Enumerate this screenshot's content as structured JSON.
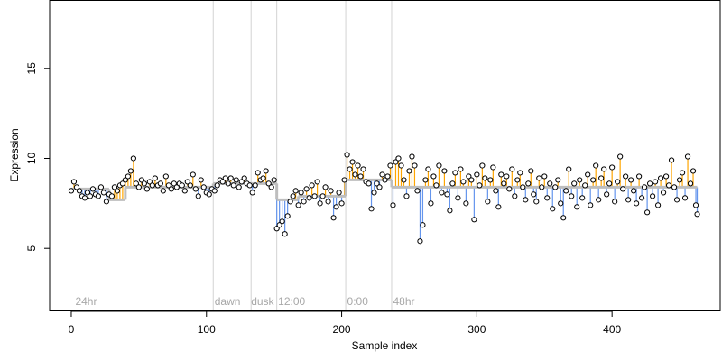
{
  "chart_data": {
    "type": "scatter",
    "title": "",
    "xlabel": "Sample index",
    "ylabel": "Expression",
    "xlim": [
      -16,
      480
    ],
    "ylim": [
      1.5,
      18.8
    ],
    "x_ticks": [
      0,
      100,
      200,
      300,
      400
    ],
    "y_ticks": [
      5,
      10,
      15
    ],
    "grid": false,
    "colors": {
      "above_fit": "#ffa500",
      "below_fit": "#6495ed",
      "fit_line": "#bebebe",
      "divider": "#d3d3d3",
      "point_fill": "#ffffff",
      "point_stroke": "#000000",
      "phase_label": "#a8a8a8"
    },
    "phase_markers": [
      {
        "label": "24hr",
        "x": 0,
        "label_x": 3
      },
      {
        "label": "dawn",
        "x": 105,
        "label_x": 106
      },
      {
        "label": "dusk",
        "x": 133,
        "label_x": 133
      },
      {
        "label": "12:00",
        "x": 152,
        "label_x": 153
      },
      {
        "label": "0:00",
        "x": 203,
        "label_x": 204
      },
      {
        "label": "48hr",
        "x": 237,
        "label_x": 238
      }
    ],
    "fit_segments": [
      {
        "x_start": 0,
        "x_end": 28,
        "y": 8.3
      },
      {
        "x_start": 28,
        "x_end": 40,
        "y": 7.7
      },
      {
        "x_start": 40,
        "x_end": 105,
        "y": 8.4
      },
      {
        "x_start": 105,
        "x_end": 133,
        "y": 8.6
      },
      {
        "x_start": 133,
        "x_end": 152,
        "y": 8.6
      },
      {
        "x_start": 152,
        "x_end": 168,
        "y": 7.7
      },
      {
        "x_start": 168,
        "x_end": 203,
        "y": 7.9
      },
      {
        "x_start": 203,
        "x_end": 237,
        "y": 8.8
      },
      {
        "x_start": 237,
        "x_end": 463,
        "y": 8.4
      }
    ],
    "series": [
      {
        "values": [
          [
            0,
            8.2
          ],
          [
            2,
            8.7
          ],
          [
            4,
            8.4
          ],
          [
            6,
            8.2
          ],
          [
            8,
            7.9
          ],
          [
            10,
            7.8
          ],
          [
            12,
            8.1
          ],
          [
            14,
            7.9
          ],
          [
            16,
            8.3
          ],
          [
            18,
            8.0
          ],
          [
            20,
            7.9
          ],
          [
            22,
            8.4
          ],
          [
            24,
            8.1
          ],
          [
            26,
            7.6
          ],
          [
            28,
            8.0
          ],
          [
            30,
            7.9
          ],
          [
            32,
            8.4
          ],
          [
            34,
            8.2
          ],
          [
            36,
            8.5
          ],
          [
            38,
            8.6
          ],
          [
            40,
            8.8
          ],
          [
            42,
            9.0
          ],
          [
            44,
            9.3
          ],
          [
            46,
            10.0
          ],
          [
            48,
            8.6
          ],
          [
            50,
            8.4
          ],
          [
            52,
            8.8
          ],
          [
            54,
            8.6
          ],
          [
            56,
            8.3
          ],
          [
            58,
            8.7
          ],
          [
            60,
            8.5
          ],
          [
            62,
            8.9
          ],
          [
            64,
            8.5
          ],
          [
            66,
            8.6
          ],
          [
            68,
            8.2
          ],
          [
            70,
            9.0
          ],
          [
            72,
            8.5
          ],
          [
            74,
            8.3
          ],
          [
            76,
            8.6
          ],
          [
            78,
            8.4
          ],
          [
            80,
            8.6
          ],
          [
            82,
            8.5
          ],
          [
            84,
            8.2
          ],
          [
            86,
            8.7
          ],
          [
            88,
            8.5
          ],
          [
            90,
            9.1
          ],
          [
            92,
            8.3
          ],
          [
            94,
            7.9
          ],
          [
            96,
            8.8
          ],
          [
            98,
            8.4
          ],
          [
            100,
            8.1
          ],
          [
            102,
            8.0
          ],
          [
            104,
            8.3
          ],
          [
            106,
            8.2
          ],
          [
            108,
            8.5
          ],
          [
            110,
            8.8
          ],
          [
            112,
            8.7
          ],
          [
            114,
            8.9
          ],
          [
            116,
            8.6
          ],
          [
            118,
            8.9
          ],
          [
            120,
            8.5
          ],
          [
            122,
            8.8
          ],
          [
            124,
            8.4
          ],
          [
            126,
            8.7
          ],
          [
            128,
            8.9
          ],
          [
            130,
            8.6
          ],
          [
            132,
            8.5
          ],
          [
            134,
            8.1
          ],
          [
            136,
            8.5
          ],
          [
            138,
            9.2
          ],
          [
            140,
            8.8
          ],
          [
            142,
            8.9
          ],
          [
            144,
            9.3
          ],
          [
            146,
            8.6
          ],
          [
            148,
            8.4
          ],
          [
            150,
            8.8
          ],
          [
            152,
            6.1
          ],
          [
            154,
            6.3
          ],
          [
            156,
            6.5
          ],
          [
            158,
            5.8
          ],
          [
            160,
            6.8
          ],
          [
            162,
            7.6
          ],
          [
            164,
            7.9
          ],
          [
            166,
            8.2
          ],
          [
            168,
            7.4
          ],
          [
            170,
            8.1
          ],
          [
            172,
            7.6
          ],
          [
            174,
            8.3
          ],
          [
            176,
            7.8
          ],
          [
            178,
            8.5
          ],
          [
            180,
            7.9
          ],
          [
            182,
            8.7
          ],
          [
            184,
            7.5
          ],
          [
            186,
            7.9
          ],
          [
            188,
            8.4
          ],
          [
            190,
            7.6
          ],
          [
            192,
            8.2
          ],
          [
            194,
            6.7
          ],
          [
            196,
            7.3
          ],
          [
            198,
            8.1
          ],
          [
            200,
            7.5
          ],
          [
            202,
            8.8
          ],
          [
            204,
            10.2
          ],
          [
            206,
            9.4
          ],
          [
            208,
            9.8
          ],
          [
            210,
            9.1
          ],
          [
            212,
            9.6
          ],
          [
            214,
            9.0
          ],
          [
            216,
            9.4
          ],
          [
            218,
            8.7
          ],
          [
            220,
            8.6
          ],
          [
            222,
            7.2
          ],
          [
            224,
            8.1
          ],
          [
            226,
            8.6
          ],
          [
            228,
            8.4
          ],
          [
            230,
            9.1
          ],
          [
            232,
            8.8
          ],
          [
            234,
            9.0
          ],
          [
            236,
            9.6
          ],
          [
            238,
            7.4
          ],
          [
            240,
            9.8
          ],
          [
            242,
            10.0
          ],
          [
            244,
            9.6
          ],
          [
            246,
            8.8
          ],
          [
            248,
            7.9
          ],
          [
            250,
            9.3
          ],
          [
            252,
            10.1
          ],
          [
            254,
            9.6
          ],
          [
            256,
            8.2
          ],
          [
            258,
            5.4
          ],
          [
            260,
            6.3
          ],
          [
            262,
            8.8
          ],
          [
            264,
            9.4
          ],
          [
            266,
            7.5
          ],
          [
            268,
            9.0
          ],
          [
            270,
            8.5
          ],
          [
            272,
            9.6
          ],
          [
            274,
            8.1
          ],
          [
            276,
            9.3
          ],
          [
            278,
            8.0
          ],
          [
            280,
            7.1
          ],
          [
            282,
            8.6
          ],
          [
            284,
            9.2
          ],
          [
            286,
            7.8
          ],
          [
            288,
            9.4
          ],
          [
            290,
            8.7
          ],
          [
            292,
            7.5
          ],
          [
            294,
            9.0
          ],
          [
            296,
            8.8
          ],
          [
            298,
            6.6
          ],
          [
            300,
            9.1
          ],
          [
            302,
            8.5
          ],
          [
            304,
            9.6
          ],
          [
            306,
            8.9
          ],
          [
            308,
            7.6
          ],
          [
            310,
            8.8
          ],
          [
            312,
            9.5
          ],
          [
            314,
            8.2
          ],
          [
            316,
            7.3
          ],
          [
            318,
            9.1
          ],
          [
            320,
            8.6
          ],
          [
            322,
            9.0
          ],
          [
            324,
            8.3
          ],
          [
            326,
            9.4
          ],
          [
            328,
            7.9
          ],
          [
            330,
            8.8
          ],
          [
            332,
            9.2
          ],
          [
            334,
            8.4
          ],
          [
            336,
            7.7
          ],
          [
            338,
            8.6
          ],
          [
            340,
            9.3
          ],
          [
            342,
            8.0
          ],
          [
            344,
            7.6
          ],
          [
            346,
            8.9
          ],
          [
            348,
            8.4
          ],
          [
            350,
            9.0
          ],
          [
            352,
            7.8
          ],
          [
            354,
            8.6
          ],
          [
            356,
            7.2
          ],
          [
            358,
            8.4
          ],
          [
            360,
            8.8
          ],
          [
            362,
            7.5
          ],
          [
            364,
            6.7
          ],
          [
            366,
            8.2
          ],
          [
            368,
            9.4
          ],
          [
            370,
            7.9
          ],
          [
            372,
            8.6
          ],
          [
            374,
            7.3
          ],
          [
            376,
            8.8
          ],
          [
            378,
            7.8
          ],
          [
            380,
            8.5
          ],
          [
            382,
            9.1
          ],
          [
            384,
            7.4
          ],
          [
            386,
            8.8
          ],
          [
            388,
            9.6
          ],
          [
            390,
            7.7
          ],
          [
            392,
            8.9
          ],
          [
            394,
            9.4
          ],
          [
            396,
            8.0
          ],
          [
            398,
            8.6
          ],
          [
            400,
            9.5
          ],
          [
            402,
            7.6
          ],
          [
            404,
            8.7
          ],
          [
            406,
            10.1
          ],
          [
            408,
            8.3
          ],
          [
            410,
            9.0
          ],
          [
            412,
            7.7
          ],
          [
            414,
            8.8
          ],
          [
            416,
            8.2
          ],
          [
            418,
            7.5
          ],
          [
            420,
            9.0
          ],
          [
            422,
            7.8
          ],
          [
            424,
            8.4
          ],
          [
            426,
            7.0
          ],
          [
            428,
            8.6
          ],
          [
            430,
            7.9
          ],
          [
            432,
            8.7
          ],
          [
            434,
            7.4
          ],
          [
            436,
            8.9
          ],
          [
            438,
            8.1
          ],
          [
            440,
            9.0
          ],
          [
            442,
            8.5
          ],
          [
            444,
            9.9
          ],
          [
            446,
            8.4
          ],
          [
            448,
            7.7
          ],
          [
            450,
            8.8
          ],
          [
            452,
            9.2
          ],
          [
            454,
            7.8
          ],
          [
            456,
            10.1
          ],
          [
            458,
            8.6
          ],
          [
            460,
            9.3
          ],
          [
            462,
            7.4
          ],
          [
            463,
            6.9
          ]
        ]
      }
    ]
  }
}
